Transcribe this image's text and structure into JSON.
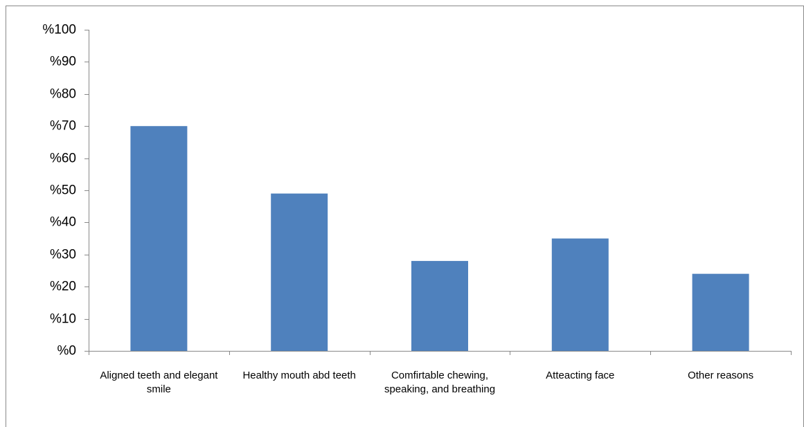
{
  "chart_data": {
    "type": "bar",
    "categories": [
      "Aligned teeth and elegant smile",
      "Healthy mouth abd teeth",
      "Comfirtable chewing, speaking, and breathing",
      "Atteacting face",
      "Other reasons"
    ],
    "values": [
      70,
      49,
      28,
      35,
      24
    ],
    "color": "#4f81bd",
    "ylim": [
      0,
      100
    ],
    "yticks": [
      {
        "value": 0,
        "label": "%0"
      },
      {
        "value": 10,
        "label": "%10"
      },
      {
        "value": 20,
        "label": "%20"
      },
      {
        "value": 30,
        "label": "%30"
      },
      {
        "value": 40,
        "label": "%40"
      },
      {
        "value": 50,
        "label": "%50"
      },
      {
        "value": 60,
        "label": "%60"
      },
      {
        "value": 70,
        "label": "%70"
      },
      {
        "value": 80,
        "label": "%80"
      },
      {
        "value": 90,
        "label": "%90"
      },
      {
        "value": 100,
        "label": "%100"
      }
    ],
    "grid": false
  }
}
